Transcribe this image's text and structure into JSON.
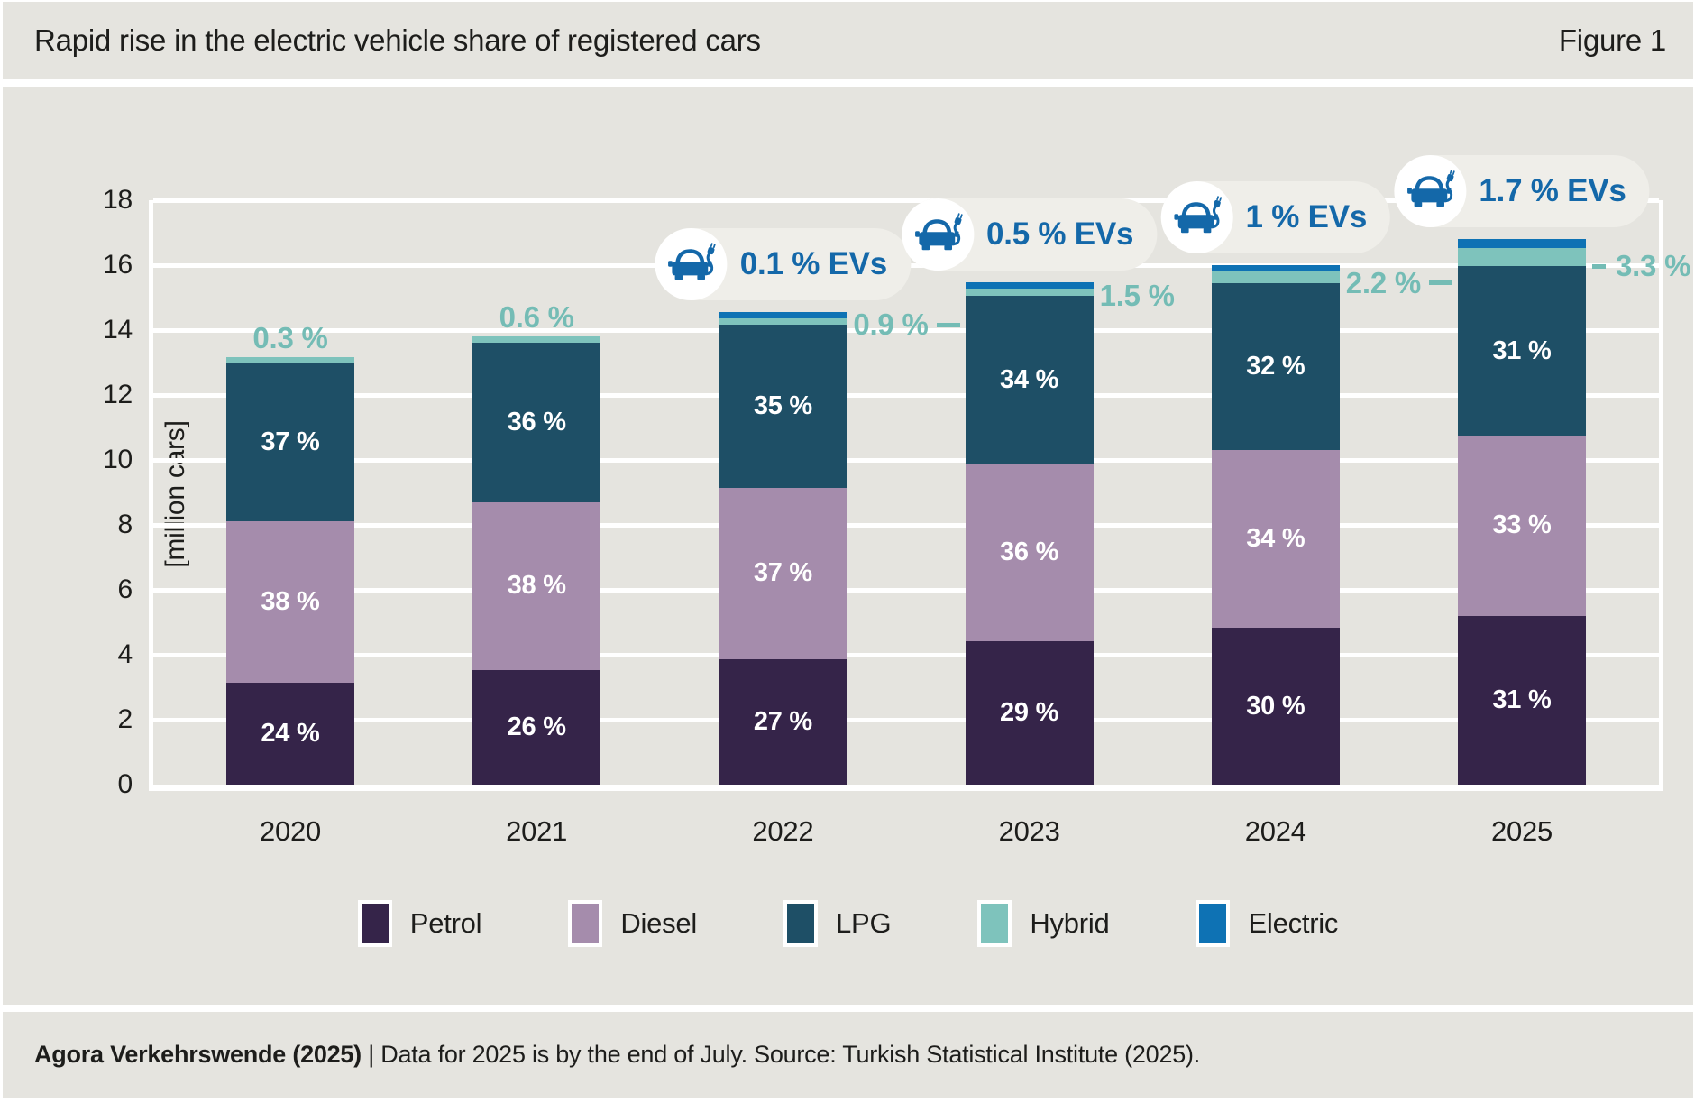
{
  "header": {
    "title": "Rapid rise in the electric vehicle share of registered cars",
    "figure_label": "Figure 1"
  },
  "chart_data": {
    "type": "bar",
    "stacked": true,
    "title": "Rapid rise in the electric vehicle share of registered cars",
    "xlabel": "",
    "ylabel": "[million cars]",
    "ylim": [
      0,
      18
    ],
    "ytick_step": 2,
    "yticks": [
      "0",
      "2",
      "4",
      "6",
      "8",
      "10",
      "12",
      "14",
      "16",
      "18"
    ],
    "grid": "horizontal white lines every 2 units",
    "legend_position": "bottom",
    "categories": [
      "2020",
      "2021",
      "2022",
      "2023",
      "2024",
      "2025"
    ],
    "totals_million_cars": [
      13.1,
      13.6,
      14.3,
      15.2,
      16.1,
      16.8
    ],
    "series": [
      {
        "name": "Petrol",
        "color": "#352449",
        "values_pct": [
          24,
          26,
          27,
          29,
          30,
          31
        ],
        "labels": [
          "24 %",
          "26 %",
          "27 %",
          "29 %",
          "30 %",
          "31 %"
        ]
      },
      {
        "name": "Diesel",
        "color": "#a58cac",
        "values_pct": [
          38,
          38,
          37,
          36,
          34,
          33
        ],
        "labels": [
          "38 %",
          "38 %",
          "37 %",
          "36 %",
          "34 %",
          "33 %"
        ]
      },
      {
        "name": "LPG",
        "color": "#1e4f66",
        "values_pct": [
          37,
          36,
          35,
          34,
          32,
          31
        ],
        "labels": [
          "37 %",
          "36 %",
          "35 %",
          "34 %",
          "32 %",
          "31 %"
        ]
      },
      {
        "name": "Hybrid",
        "color": "#7ec3bc",
        "values_pct": [
          0.3,
          0.6,
          0.9,
          1.5,
          2.2,
          3.3
        ],
        "labels": [
          "0.3 %",
          "0.6 %",
          "0.9 %",
          "1.5 %",
          "2.2 %",
          "3.3 %"
        ]
      },
      {
        "name": "Electric",
        "color": "#0e72b4",
        "values_pct": [
          0,
          0,
          0.1,
          0.5,
          1.0,
          1.7
        ],
        "labels": [
          "",
          "",
          "0.1 %",
          "0.5 %",
          "1 %",
          "1.7 %"
        ]
      }
    ],
    "hybrid_annotations": [
      {
        "index": 0,
        "text": "0.3 %",
        "position": "top",
        "dash": "none"
      },
      {
        "index": 1,
        "text": "0.6 %",
        "position": "top",
        "dash": "none"
      },
      {
        "index": 2,
        "text": "0.9 %",
        "position": "right",
        "dash": "after"
      },
      {
        "index": 3,
        "text": "1.5 %",
        "position": "right",
        "dash": "none"
      },
      {
        "index": 4,
        "text": "2.2 %",
        "position": "right",
        "dash": "after"
      },
      {
        "index": 5,
        "text": "3.3 %",
        "position": "right",
        "dash": "before"
      }
    ],
    "ev_callouts": [
      {
        "index": 2,
        "text": "0.1 % EVs"
      },
      {
        "index": 3,
        "text": "0.5 % EVs"
      },
      {
        "index": 4,
        "text": "1 % EVs"
      },
      {
        "index": 5,
        "text": "1.7 % EVs"
      }
    ]
  },
  "legend": {
    "items": [
      {
        "label": "Petrol",
        "color": "#352449"
      },
      {
        "label": "Diesel",
        "color": "#a58cac"
      },
      {
        "label": "LPG",
        "color": "#1e4f66"
      },
      {
        "label": "Hybrid",
        "color": "#7ec3bc"
      },
      {
        "label": "Electric",
        "color": "#0e72b4"
      }
    ]
  },
  "footer": {
    "bold": "Agora Verkehrswende (2025)",
    "rest": " | Data for 2025 is by the end of July. Source: Turkish Statistical Institute (2025)."
  },
  "colors": {
    "background_band": "#e5e4df",
    "callout_pill": "#efeee9",
    "callout_text_blue": "#1468a9",
    "hybrid_label_teal": "#74bcb5",
    "gridline": "#ffffff",
    "text": "#1d1d1b"
  }
}
